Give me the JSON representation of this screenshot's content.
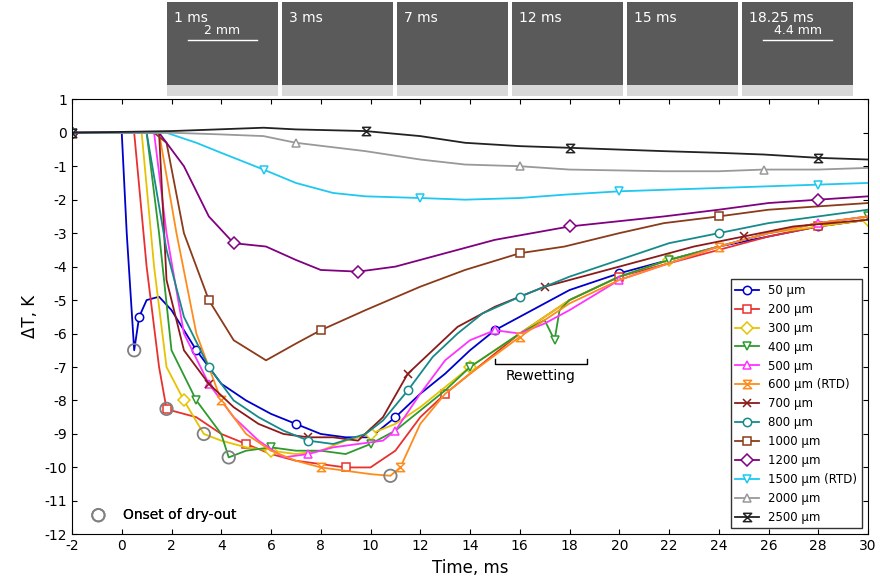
{
  "chart_data": {
    "type": "line",
    "x_label": "Time, ms",
    "y_label": "ΔT, K",
    "xlim": [
      -2,
      30
    ],
    "ylim": [
      -12,
      1
    ],
    "xticks": [
      -2,
      0,
      2,
      4,
      6,
      8,
      10,
      12,
      14,
      16,
      18,
      20,
      22,
      24,
      26,
      28,
      30
    ],
    "yticks": [
      -12,
      -11,
      -10,
      -9,
      -8,
      -7,
      -6,
      -5,
      -4,
      -3,
      -2,
      -1,
      0,
      1
    ],
    "grid": false,
    "legend": "lower right",
    "images": {
      "labels": [
        "1 ms",
        "3 ms",
        "7 ms",
        "12 ms",
        "15 ms",
        "18.25 ms"
      ],
      "scale_labels": [
        {
          "image": 0,
          "text": "2 mm"
        },
        {
          "image": 5,
          "text": "4.4 mm"
        }
      ]
    },
    "annotations": [
      {
        "text": "Rewetting",
        "x_start": 15,
        "x_end": 18.7,
        "y": -6.9
      }
    ],
    "series": [
      {
        "name": "50 µm",
        "color": "#0000cc",
        "marker": "circle",
        "x": [
          -2,
          0,
          0.2,
          0.5,
          0.7,
          1,
          1.5,
          2,
          3,
          4,
          5,
          6,
          7,
          8,
          9,
          10,
          11,
          12,
          13,
          14,
          15,
          16,
          17,
          18,
          20,
          22,
          24,
          26,
          28,
          30
        ],
        "values": [
          0,
          0,
          -3,
          -6.5,
          -5.5,
          -5,
          -4.9,
          -5.3,
          -6.5,
          -7.5,
          -8,
          -8.4,
          -8.7,
          -9,
          -9.1,
          -9.1,
          -8.5,
          -7.8,
          -7.2,
          -6.5,
          -5.9,
          -5.5,
          -5.1,
          -4.7,
          -4.2,
          -3.8,
          -3.4,
          -3.1,
          -2.8,
          -2.6
        ]
      },
      {
        "name": "200 µm",
        "color": "#e8312f",
        "marker": "square",
        "x": [
          -2,
          0.5,
          1,
          1.5,
          1.8,
          2,
          3,
          4,
          5,
          6,
          7,
          8,
          9,
          10,
          11,
          12,
          13,
          14,
          16,
          18,
          20,
          22,
          24,
          26,
          28,
          30
        ],
        "values": [
          0,
          0,
          -4,
          -7,
          -8.25,
          -8.3,
          -8.5,
          -9,
          -9.3,
          -9.6,
          -9.8,
          -9.9,
          -10,
          -10,
          -9.5,
          -8.5,
          -7.8,
          -7.2,
          -6,
          -5,
          -4.3,
          -3.9,
          -3.5,
          -3.1,
          -2.8,
          -2.6
        ]
      },
      {
        "name": "300 µm",
        "color": "#e6c300",
        "marker": "diamond",
        "x": [
          -2,
          0.8,
          1.3,
          1.8,
          2.5,
          3.3,
          4,
          5,
          6,
          7,
          8,
          9,
          10,
          11,
          12,
          13,
          14,
          16,
          18,
          20,
          22,
          24,
          26,
          28,
          30
        ],
        "values": [
          0,
          0,
          -4,
          -7,
          -8,
          -9,
          -9.2,
          -9.4,
          -9.5,
          -9.6,
          -9.5,
          -9.2,
          -9,
          -8.7,
          -8.2,
          -7.6,
          -7,
          -6,
          -5,
          -4.3,
          -3.8,
          -3.4,
          -3,
          -2.8,
          -2.6
        ]
      },
      {
        "name": "400 µm",
        "color": "#2e9a2e",
        "marker": "triangle_down",
        "x": [
          -2,
          1,
          1.5,
          2,
          3,
          4,
          4.3,
          5,
          6,
          7,
          8,
          9,
          10,
          11,
          12,
          13,
          14,
          15,
          16,
          17,
          17.4,
          17.6,
          18,
          20,
          22,
          24,
          26,
          28,
          30
        ],
        "values": [
          0,
          0,
          -3,
          -6.5,
          -8,
          -9,
          -9.7,
          -9.5,
          -9.4,
          -9.5,
          -9.5,
          -9.6,
          -9.3,
          -8.9,
          -8.3,
          -7.7,
          -7,
          -6.5,
          -6,
          -5.6,
          -6.2,
          -5.3,
          -5,
          -4.3,
          -3.8,
          -3.4,
          -3,
          -2.7,
          -2.5
        ]
      },
      {
        "name": "500 µm",
        "color": "#ff33ff",
        "marker": "triangle_up",
        "x": [
          -2,
          1.3,
          1.8,
          2.5,
          3.5,
          4.5,
          5.5,
          6.5,
          7.5,
          8.5,
          9.5,
          10.5,
          11,
          12,
          13,
          14,
          15,
          16,
          17,
          18,
          20,
          22,
          24,
          26,
          28,
          30
        ],
        "values": [
          0,
          0,
          -3,
          -6,
          -7.5,
          -8.5,
          -9.2,
          -9.7,
          -9.6,
          -9.4,
          -9.3,
          -9.2,
          -8.9,
          -7.8,
          -6.8,
          -6.2,
          -5.9,
          -6,
          -5.7,
          -5.3,
          -4.4,
          -3.9,
          -3.4,
          -3,
          -2.7,
          -2.5
        ]
      },
      {
        "name": "600 µm (RTD)",
        "color": "#ff8c1a",
        "marker": "hourglass",
        "x": [
          -2,
          1.5,
          2.2,
          3,
          4,
          5,
          6,
          7,
          8,
          9,
          10,
          10.8,
          11.2,
          12,
          13,
          14,
          16,
          18,
          20,
          22,
          24,
          26,
          28,
          30
        ],
        "values": [
          0,
          0,
          -3,
          -6,
          -8,
          -9,
          -9.5,
          -9.8,
          -10,
          -10.1,
          -10.2,
          -10.25,
          -10,
          -8.7,
          -7.8,
          -7.2,
          -6.1,
          -5.1,
          -4.4,
          -3.9,
          -3.4,
          -3,
          -2.7,
          -2.5
        ]
      },
      {
        "name": "700 µm",
        "color": "#8b1a1a",
        "marker": "x",
        "x": [
          -2,
          1.5,
          1.8,
          2.5,
          3.5,
          4.5,
          5.5,
          6.5,
          7.5,
          8.5,
          9.5,
          10.5,
          11.5,
          12.5,
          13.5,
          15,
          17,
          19,
          21,
          23,
          25,
          27,
          30
        ],
        "values": [
          0,
          0,
          -4.4,
          -6.5,
          -7.5,
          -8.2,
          -8.7,
          -9,
          -9.1,
          -9.1,
          -9.2,
          -8.5,
          -7.2,
          -6.5,
          -5.8,
          -5.2,
          -4.6,
          -4.2,
          -3.8,
          -3.4,
          -3.1,
          -2.8,
          -2.6
        ]
      },
      {
        "name": "800 µm",
        "color": "#168a8a",
        "marker": "circle",
        "x": [
          -2,
          1,
          1.8,
          2.5,
          3.5,
          4.5,
          5.5,
          6.5,
          7.5,
          8.5,
          9.8,
          10.5,
          11.5,
          12.5,
          13.5,
          14.5,
          16,
          18,
          20,
          22,
          24,
          26,
          28,
          30
        ],
        "values": [
          0,
          0,
          -3.5,
          -5.5,
          -7,
          -8,
          -8.5,
          -8.9,
          -9.2,
          -9.3,
          -9,
          -8.6,
          -7.7,
          -6.7,
          -6,
          -5.4,
          -4.9,
          -4.3,
          -3.8,
          -3.3,
          -3,
          -2.7,
          -2.5,
          -2.3
        ]
      },
      {
        "name": "1000 µm",
        "color": "#8b3a1a",
        "marker": "square",
        "x": [
          -2,
          1.3,
          1.8,
          2.5,
          3.5,
          4.5,
          5.8,
          7,
          8,
          9.8,
          12,
          13.8,
          16,
          17.8,
          20,
          21.8,
          24,
          26,
          28,
          30
        ],
        "values": [
          0,
          0,
          -0.3,
          -3,
          -5,
          -6.2,
          -6.8,
          -6.3,
          -5.9,
          -5.3,
          -4.6,
          -4.1,
          -3.6,
          -3.4,
          -3,
          -2.7,
          -2.5,
          -2.3,
          -2.2,
          -2.1
        ]
      },
      {
        "name": "1200 µm",
        "color": "#800080",
        "marker": "diamond",
        "x": [
          -2,
          1.5,
          2.5,
          3.5,
          4.5,
          5.8,
          7,
          8,
          9.5,
          11,
          13,
          15,
          18,
          21.8,
          24,
          26,
          28,
          30
        ],
        "values": [
          0,
          0,
          -1,
          -2.5,
          -3.3,
          -3.4,
          -3.8,
          -4.1,
          -4.15,
          -4,
          -3.6,
          -3.2,
          -2.8,
          -2.5,
          -2.3,
          -2.1,
          -2,
          -1.9
        ]
      },
      {
        "name": "1500 µm (RTD)",
        "color": "#1ec8f0",
        "marker": "triangle_down",
        "x": [
          -2,
          1.8,
          3,
          4,
          5.7,
          7,
          8.5,
          9.8,
          12,
          13.8,
          16,
          17.8,
          20,
          22,
          24,
          26,
          28,
          30
        ],
        "values": [
          0,
          0,
          -0.3,
          -0.6,
          -1.1,
          -1.5,
          -1.8,
          -1.9,
          -1.95,
          -2,
          -1.95,
          -1.85,
          -1.75,
          -1.7,
          -1.65,
          -1.6,
          -1.55,
          -1.5
        ]
      },
      {
        "name": "2000 µm",
        "color": "#999999",
        "marker": "triangle_up",
        "x": [
          -2,
          2,
          4,
          5.7,
          7,
          9.8,
          12,
          13.8,
          16,
          18,
          21.8,
          24,
          25.8,
          28,
          30
        ],
        "values": [
          0,
          0,
          -0.05,
          -0.1,
          -0.3,
          -0.55,
          -0.8,
          -0.95,
          -1,
          -1.1,
          -1.15,
          -1.15,
          -1.1,
          -1.1,
          -1.05
        ]
      },
      {
        "name": "2500 µm",
        "color": "#222222",
        "marker": "hourglass",
        "x": [
          -2,
          2,
          5.7,
          7,
          9.8,
          12,
          13.8,
          16,
          18,
          21.8,
          24,
          25.8,
          28,
          30
        ],
        "values": [
          0,
          0.05,
          0.15,
          0.1,
          0.05,
          -0.1,
          -0.3,
          -0.4,
          -0.45,
          -0.55,
          -0.6,
          -0.65,
          -0.75,
          -0.8
        ]
      },
      {
        "name": "Onset of dry-out",
        "type": "scatter",
        "color": "#808080",
        "marker": "circle",
        "legend": "lower left",
        "x": [
          0.5,
          1.8,
          3.3,
          4.3,
          10.8
        ],
        "values": [
          -6.5,
          -8.25,
          -9,
          -9.7,
          -10.25
        ]
      }
    ]
  }
}
